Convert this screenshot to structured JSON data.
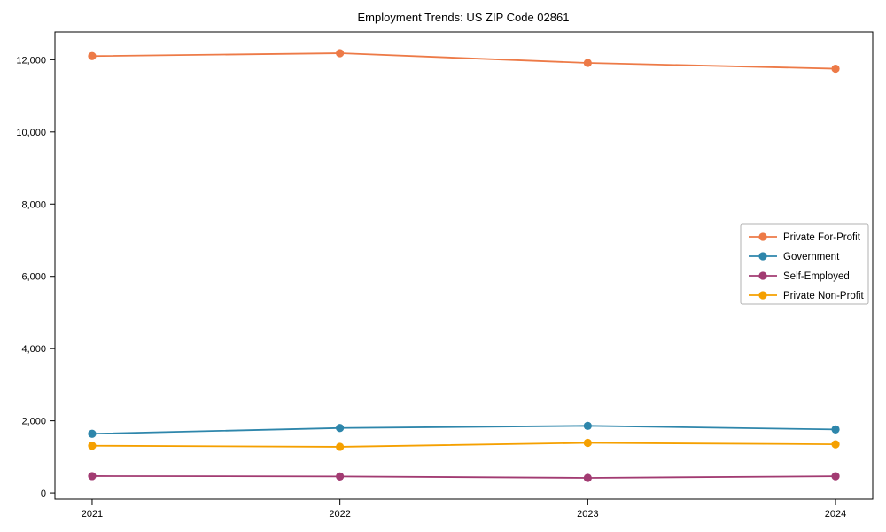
{
  "chart_data": {
    "type": "line",
    "title": "Employment Trends: US ZIP Code 02861",
    "xlabel": "",
    "ylabel": "",
    "x": [
      2021,
      2022,
      2023,
      2024
    ],
    "x_tick_labels": [
      "2021",
      "2022",
      "2023",
      "2024"
    ],
    "y_ticks": [
      0,
      2000,
      4000,
      6000,
      8000,
      10000,
      12000
    ],
    "y_tick_labels": [
      "0",
      "2,000",
      "4,000",
      "6,000",
      "8,000",
      "10,000",
      "12,000"
    ],
    "xlim": [
      2020.85,
      2024.15
    ],
    "ylim": [
      -170,
      12770
    ],
    "grid": false,
    "legend_position": "center-right",
    "series": [
      {
        "name": "Private For-Profit",
        "color": "#ED7A47",
        "values": [
          12100,
          12180,
          11910,
          11750
        ]
      },
      {
        "name": "Government",
        "color": "#2E86AB",
        "values": [
          1640,
          1800,
          1860,
          1760
        ]
      },
      {
        "name": "Self-Employed",
        "color": "#A23B72",
        "values": [
          470,
          460,
          420,
          465
        ]
      },
      {
        "name": "Private Non-Profit",
        "color": "#F5A000",
        "values": [
          1310,
          1280,
          1390,
          1350
        ]
      }
    ]
  },
  "colors": {
    "background": "#ffffff",
    "axis": "#000000",
    "text": "#000000",
    "legend_border": "#b0b0b0"
  }
}
